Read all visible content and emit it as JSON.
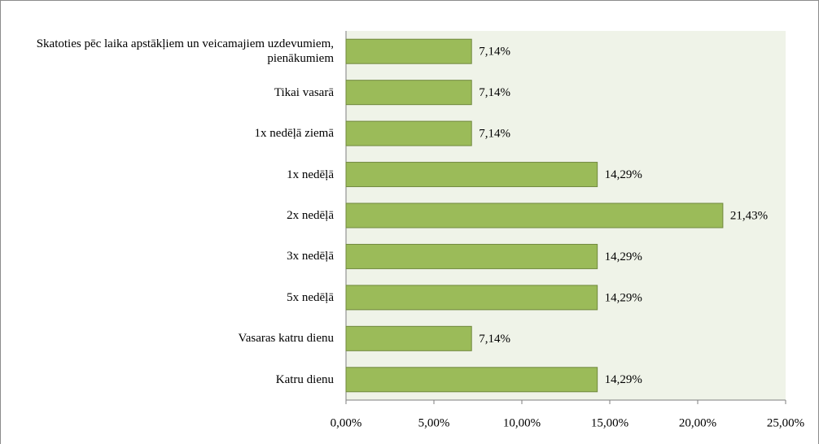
{
  "chart_data": {
    "type": "bar",
    "orientation": "horizontal",
    "categories": [
      "Skatoties pēc laika apstākļiem un veicamajiem uzdevumiem, pienākumiem",
      "Tikai vasarā",
      "1x nedēļā ziemā",
      "1x nedēļā",
      "2x nedēļā",
      "3x nedēļā",
      "5x nedēļā",
      "Vasaras katru dienu",
      "Katru dienu"
    ],
    "values": [
      7.14,
      7.14,
      7.14,
      14.29,
      21.43,
      14.29,
      14.29,
      7.14,
      14.29
    ],
    "value_labels": [
      "7,14%",
      "7,14%",
      "7,14%",
      "14,29%",
      "21,43%",
      "14,29%",
      "14,29%",
      "7,14%",
      "14,29%"
    ],
    "color": "#9bbb59",
    "xlim": [
      0,
      25
    ],
    "xticks": [
      {
        "value": 0,
        "label": "0,00%"
      },
      {
        "value": 5,
        "label": "5,00%"
      },
      {
        "value": 10,
        "label": "10,00%"
      },
      {
        "value": 15,
        "label": "15,00%"
      },
      {
        "value": 20,
        "label": "20,00%"
      },
      {
        "value": 25,
        "label": "25,00%"
      }
    ]
  }
}
